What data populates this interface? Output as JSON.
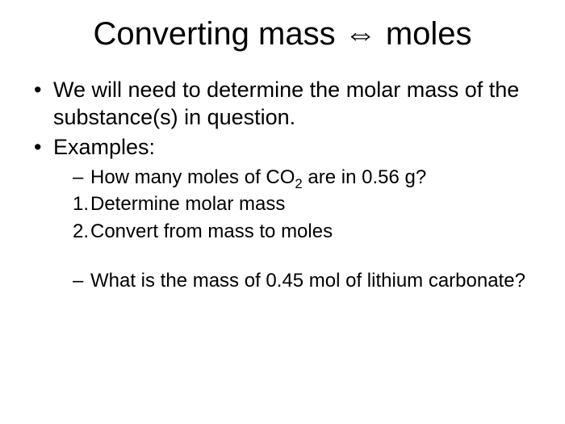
{
  "title": {
    "part1": "Converting mass ",
    "arrow": "⇔",
    "part2": " moles",
    "fontsize": 40,
    "color": "#000000"
  },
  "bullets": {
    "b1": "We will need to determine the molar mass of the substance(s) in question.",
    "b2": "Examples:",
    "sub1_pre": "How many moles of CO",
    "sub1_sub": "2",
    "sub1_post": " are in 0.56 g?",
    "num1_label": "1.",
    "num1_text": "Determine molar mass",
    "num2_label": "2.",
    "num2_text": "Convert from mass to moles",
    "sub2": "What is the mass of 0.45 mol of lithium carbonate?"
  },
  "style": {
    "background_color": "#ffffff",
    "text_color": "#000000",
    "font_family": "Arial",
    "level1_fontsize": 27,
    "level2_fontsize": 24
  }
}
